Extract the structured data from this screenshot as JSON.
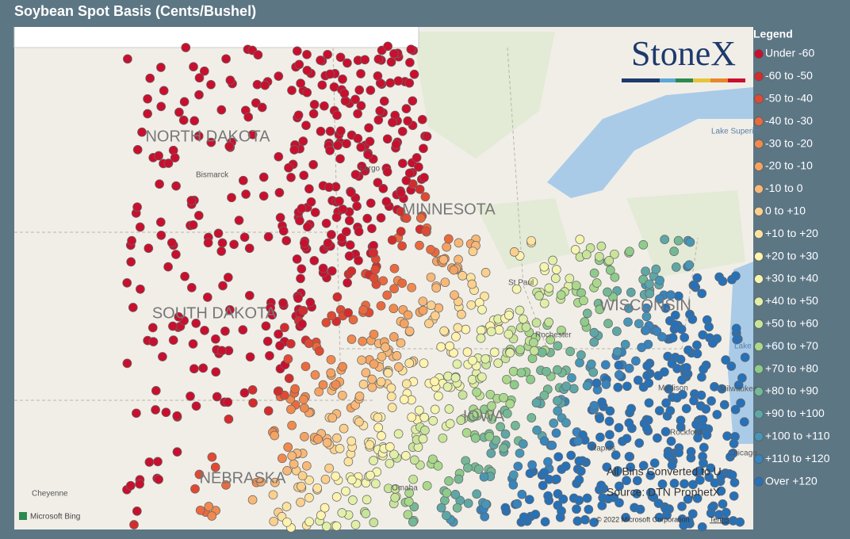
{
  "header": {
    "title": "Soybean Spot Basis (Cents/Bushel)"
  },
  "logo": "StoneX",
  "legend": {
    "title": "Legend",
    "items": [
      {
        "label": "Under -60",
        "color": "#c8102e"
      },
      {
        "label": "-60 to -50",
        "color": "#d42c2c"
      },
      {
        "label": "-50 to -40",
        "color": "#e04a32"
      },
      {
        "label": "-40 to -30",
        "color": "#ea6a3e"
      },
      {
        "label": "-30 to -20",
        "color": "#f08a4e"
      },
      {
        "label": "-20 to -10",
        "color": "#f5a362"
      },
      {
        "label": "-10 to 0",
        "color": "#f8b878"
      },
      {
        "label": "0 to +10",
        "color": "#fbcf8c"
      },
      {
        "label": "+10 to +20",
        "color": "#fde3a0"
      },
      {
        "label": "+20 to +30",
        "color": "#fff3ae"
      },
      {
        "label": "+30 to +40",
        "color": "#f5f5b0"
      },
      {
        "label": "+40 to +50",
        "color": "#e2efa8"
      },
      {
        "label": "+50 to +60",
        "color": "#c8e49a"
      },
      {
        "label": "+60 to +70",
        "color": "#abd98c"
      },
      {
        "label": "+70 to +80",
        "color": "#8fcb8a"
      },
      {
        "label": "+80 to +90",
        "color": "#74b896"
      },
      {
        "label": "+90 to +100",
        "color": "#5ea7a6"
      },
      {
        "label": "+100 to +110",
        "color": "#4896b6"
      },
      {
        "label": "+110 to +120",
        "color": "#3784be"
      },
      {
        "label": "Over +120",
        "color": "#2671b8"
      }
    ]
  },
  "map": {
    "states": [
      "NORTH DAKOTA",
      "MINNESOTA",
      "SOUTH DAKOTA",
      "WISCONSIN",
      "IOWA",
      "NEBRASKA"
    ],
    "cities": [
      "Bismarck",
      "Fargo",
      "St Paul",
      "Rochester",
      "Madison",
      "Milwaukee",
      "Rockford",
      "Rapids",
      "Chicago",
      "Omaha",
      "Cheyenne",
      "Lake Superior",
      "Lake Michigan"
    ],
    "attribution": "Microsoft Bing",
    "copyright": "© 2022 Microsoft Corporation",
    "terms": "Terms"
  },
  "notes": [
    "All Bins Converted to U",
    "Source: DTN ProphetX"
  ]
}
